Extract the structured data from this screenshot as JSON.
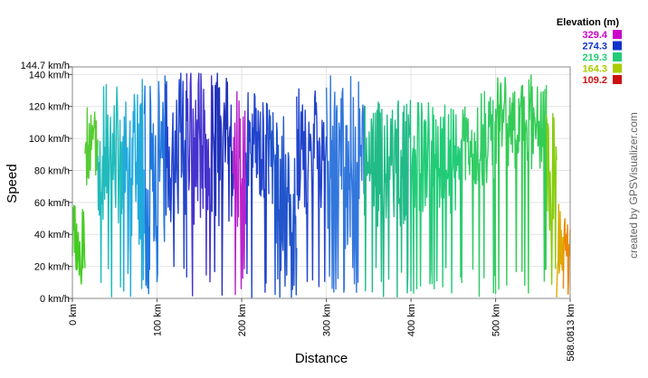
{
  "chart_data": {
    "type": "line",
    "title": "",
    "xlabel": "Distance",
    "ylabel": "Speed",
    "credit": "created by GPSVisualizer.com",
    "xlim": [
      0,
      588.0813
    ],
    "ylim": [
      0,
      144.7
    ],
    "x_ticks": [
      {
        "value": 0,
        "label": "0 km"
      },
      {
        "value": 100,
        "label": "100 km"
      },
      {
        "value": 200,
        "label": "200 km"
      },
      {
        "value": 300,
        "label": "300 km"
      },
      {
        "value": 400,
        "label": "400 km"
      },
      {
        "value": 500,
        "label": "500 km"
      },
      {
        "value": 588.0813,
        "label": "588.0813 km"
      }
    ],
    "y_ticks": [
      {
        "value": 0,
        "label": "0 km/h"
      },
      {
        "value": 20,
        "label": "20 km/h"
      },
      {
        "value": 40,
        "label": "40 km/h"
      },
      {
        "value": 60,
        "label": "60 km/h"
      },
      {
        "value": 80,
        "label": "80 km/h"
      },
      {
        "value": 100,
        "label": "100 km/h"
      },
      {
        "value": 120,
        "label": "120 km/h"
      },
      {
        "value": 140,
        "label": "140 km/h"
      },
      {
        "value": 144.7,
        "label": "144.7 km/h"
      }
    ],
    "legend": {
      "title": "Elevation (m)",
      "placement": "top-right",
      "entries": [
        {
          "label": "329.4",
          "color": "#cc00cc"
        },
        {
          "label": "274.3",
          "color": "#1133cc"
        },
        {
          "label": "219.3",
          "color": "#22cc77"
        },
        {
          "label": "164.3",
          "color": "#aacc00"
        },
        {
          "label": "109.2",
          "color": "#cc1111"
        }
      ]
    },
    "color_by": "elevation",
    "segments": [
      {
        "x_from": 0,
        "x_to": 15,
        "color": "#44cc22",
        "base": 35,
        "amp": 25,
        "seed": 3
      },
      {
        "x_from": 15,
        "x_to": 30,
        "color": "#55cc33",
        "base": 95,
        "amp": 25,
        "seed": 5
      },
      {
        "x_from": 30,
        "x_to": 60,
        "color": "#22bbbb",
        "base": 90,
        "amp": 45,
        "seed": 7
      },
      {
        "x_from": 60,
        "x_to": 85,
        "color": "#22aadd",
        "base": 85,
        "amp": 55,
        "seed": 11
      },
      {
        "x_from": 85,
        "x_to": 110,
        "color": "#2277dd",
        "base": 90,
        "amp": 55,
        "seed": 13
      },
      {
        "x_from": 110,
        "x_to": 135,
        "color": "#2244cc",
        "base": 95,
        "amp": 50,
        "seed": 17
      },
      {
        "x_from": 135,
        "x_to": 165,
        "color": "#4433cc",
        "base": 95,
        "amp": 50,
        "seed": 19
      },
      {
        "x_from": 165,
        "x_to": 190,
        "color": "#2233bb",
        "base": 95,
        "amp": 55,
        "seed": 23
      },
      {
        "x_from": 190,
        "x_to": 205,
        "color": "#bb22cc",
        "base": 90,
        "amp": 45,
        "seed": 29
      },
      {
        "x_from": 205,
        "x_to": 232,
        "color": "#2244cc",
        "base": 95,
        "amp": 35,
        "seed": 31
      },
      {
        "x_from": 232,
        "x_to": 265,
        "color": "#2255cc",
        "base": 60,
        "amp": 60,
        "seed": 37
      },
      {
        "x_from": 265,
        "x_to": 300,
        "color": "#2244cc",
        "base": 95,
        "amp": 45,
        "seed": 41
      },
      {
        "x_from": 300,
        "x_to": 345,
        "color": "#3377dd",
        "base": 85,
        "amp": 55,
        "seed": 43
      },
      {
        "x_from": 345,
        "x_to": 400,
        "color": "#22bb88",
        "base": 85,
        "amp": 40,
        "seed": 47
      },
      {
        "x_from": 400,
        "x_to": 460,
        "color": "#22cc77",
        "base": 88,
        "amp": 35,
        "seed": 53
      },
      {
        "x_from": 460,
        "x_to": 500,
        "color": "#33cc66",
        "base": 100,
        "amp": 30,
        "seed": 59
      },
      {
        "x_from": 500,
        "x_to": 560,
        "color": "#33cc55",
        "base": 110,
        "amp": 30,
        "seed": 61
      },
      {
        "x_from": 560,
        "x_to": 572,
        "color": "#88cc11",
        "base": 80,
        "amp": 45,
        "seed": 67
      },
      {
        "x_from": 572,
        "x_to": 580,
        "color": "#ddaa00",
        "base": 40,
        "amp": 35,
        "seed": 71
      },
      {
        "x_from": 580,
        "x_to": 588.0813,
        "color": "#ee8800",
        "base": 25,
        "amp": 25,
        "seed": 73
      }
    ]
  }
}
